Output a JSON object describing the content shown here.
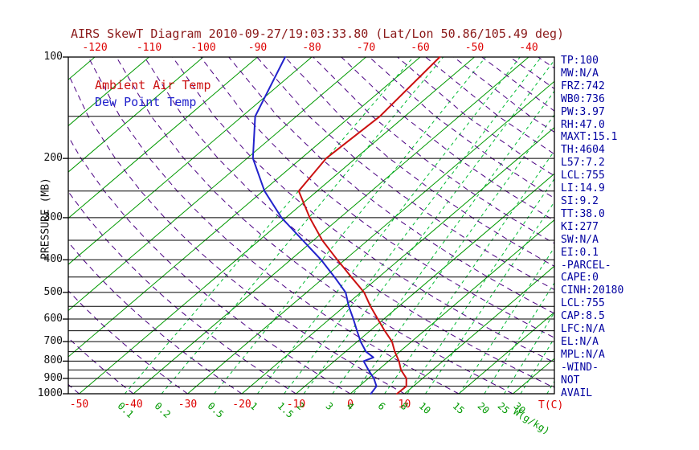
{
  "title": "AIRS SkewT Diagram 2010-09-27/19:03:33.80 (Lat/Lon 50.86/105.49 deg)",
  "legend": {
    "ambient": "Ambient Air Temp",
    "dewpoint": "Dew Point Temp"
  },
  "axes": {
    "pressure_label": "PRESSURE (MB)",
    "temp_unit": "T(C)",
    "mixing_unit": "W(g/kg)",
    "pressure_ticks": [
      100,
      200,
      300,
      400,
      500,
      600,
      700,
      800,
      900,
      1000
    ],
    "top_temp_ticks": [
      -120,
      -110,
      -100,
      -90,
      -80,
      -70,
      -60,
      -50,
      -40
    ],
    "bottom_temp_ticks": [
      -50,
      -40,
      -30,
      -20,
      -10,
      0,
      10
    ],
    "mixing_ratio_ticks": [
      0.1,
      0.2,
      0.5,
      1,
      1.5,
      2,
      3,
      4,
      6,
      8,
      10,
      15,
      20,
      25,
      30
    ]
  },
  "panel": {
    "lines": [
      "TP:100",
      "MW:N/A",
      "FRZ:742",
      "WB0:736",
      "PW:3.97",
      "RH:47.0",
      "MAXT:15.1",
      "TH:4604",
      "L57:7.2",
      "LCL:755",
      "LI:14.9",
      "SI:9.2",
      "TT:38.0",
      "KI:277",
      "SW:N/A",
      "EI:0.1",
      "-PARCEL-",
      "CAPE:0",
      "CINH:20180",
      "LCL:755",
      "CAP:8.5",
      "LFC:N/A",
      "EL:N/A",
      "MPL:N/A",
      "-WIND-",
      "NOT",
      "AVAIL"
    ]
  },
  "colors": {
    "title": "#8b1a1a",
    "temp_axis": "#dd0000",
    "isotherm": "#009900",
    "mixing": "#00bb33",
    "adiabat": "#4b0082",
    "pressure_line": "#000000",
    "ambient": "#cc1111",
    "dewpoint": "#2222cc",
    "panel_text": "#0000a0"
  },
  "chart_data": {
    "type": "line",
    "title": "AIRS SkewT Diagram 2010-09-27/19:03:33.80",
    "xlabel": "Temperature (C)",
    "ylabel": "Pressure (MB)",
    "y_scale": "log",
    "y_range": [
      100,
      1000
    ],
    "x_bottom_range": [
      -52,
      37.6
    ],
    "grid": {
      "isotherms_c": {
        "min": -120,
        "max": 30,
        "step": 10
      },
      "dry_adiabats_theta_c": {
        "min": -50,
        "max": 180,
        "step": 10
      },
      "pressure_lines_mb": {
        "min": 100,
        "max": 1000,
        "step": 50
      },
      "mixing_ratio_lines_gkg": [
        0.1,
        0.2,
        0.5,
        1,
        1.5,
        2,
        3,
        4,
        6,
        8,
        10,
        15,
        20,
        25,
        30,
        40
      ]
    },
    "series": [
      {
        "name": "Ambient Air Temp",
        "color": "#cc1111",
        "points_p_t": [
          [
            1000,
            8.6
          ],
          [
            950,
            8.7
          ],
          [
            900,
            7.0
          ],
          [
            850,
            4.2
          ],
          [
            800,
            1.9
          ],
          [
            750,
            -0.9
          ],
          [
            700,
            -3.6
          ],
          [
            650,
            -7.3
          ],
          [
            600,
            -11.1
          ],
          [
            550,
            -15.2
          ],
          [
            500,
            -19.4
          ],
          [
            450,
            -25.1
          ],
          [
            400,
            -31.4
          ],
          [
            350,
            -38.4
          ],
          [
            300,
            -45.6
          ],
          [
            250,
            -53.4
          ],
          [
            200,
            -55.4
          ],
          [
            150,
            -54.6
          ],
          [
            100,
            -56.4
          ]
        ]
      },
      {
        "name": "Dew Point Temp",
        "color": "#2222cc",
        "points_p_t": [
          [
            1000,
            3.8
          ],
          [
            950,
            3.2
          ],
          [
            900,
            1.0
          ],
          [
            850,
            -1.8
          ],
          [
            800,
            -4.6
          ],
          [
            780,
            -3.6
          ],
          [
            750,
            -6.2
          ],
          [
            700,
            -9.4
          ],
          [
            650,
            -12.4
          ],
          [
            600,
            -15.6
          ],
          [
            550,
            -19.2
          ],
          [
            500,
            -22.8
          ],
          [
            450,
            -28.2
          ],
          [
            400,
            -34.4
          ],
          [
            350,
            -42.0
          ],
          [
            300,
            -50.8
          ],
          [
            250,
            -59.7
          ],
          [
            200,
            -68.9
          ],
          [
            150,
            -77.6
          ],
          [
            100,
            -84.9
          ]
        ]
      }
    ],
    "legend_position": "upper-left-inside",
    "stats_panel_position": "right"
  }
}
